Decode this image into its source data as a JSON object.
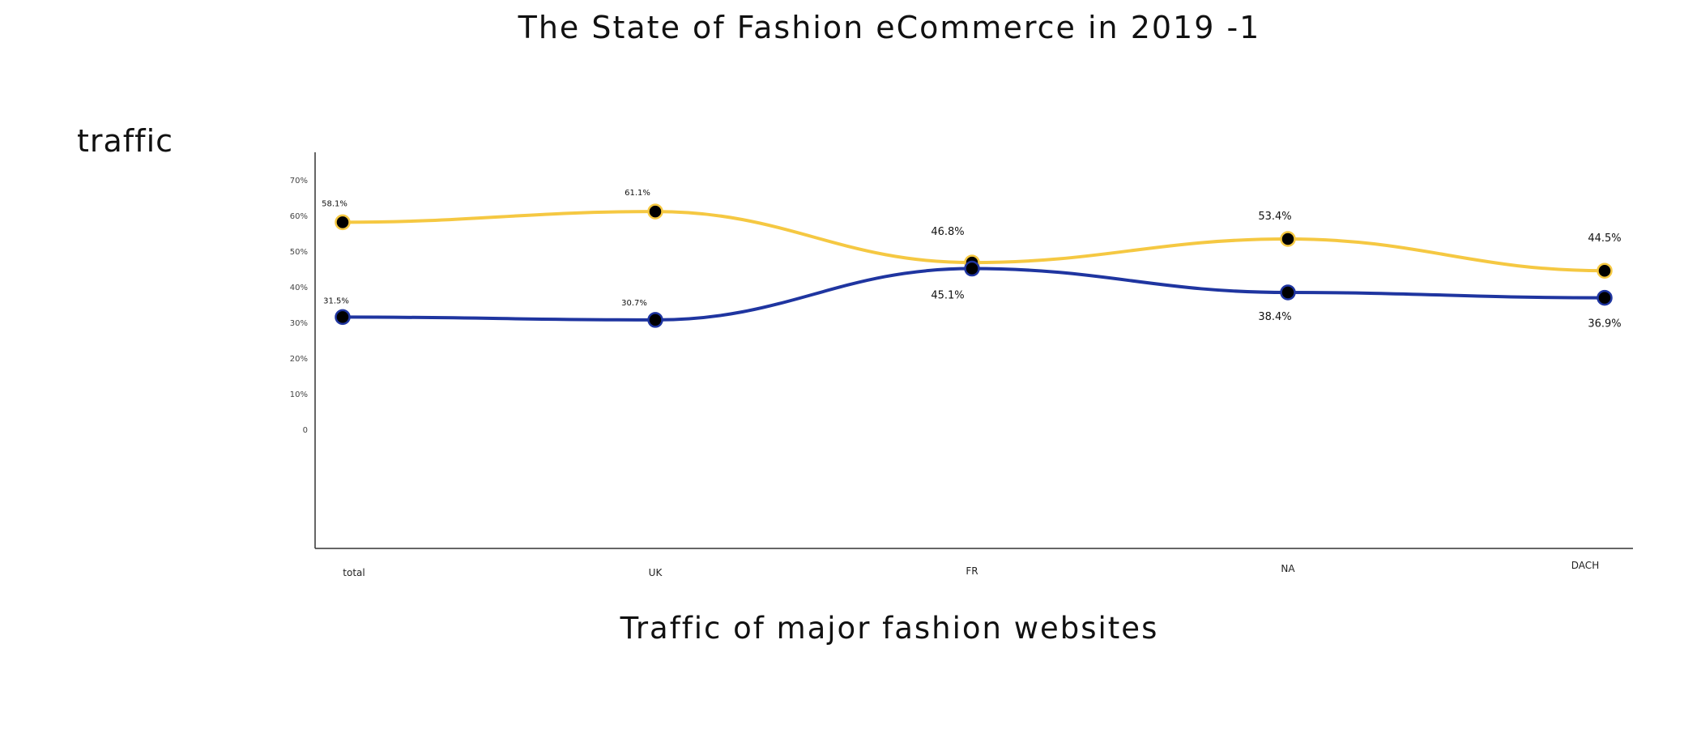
{
  "chart_data": {
    "type": "line",
    "title": "The State of Fashion eCommerce in 2019 -1",
    "xlabel": "Traffic of major fashion websites",
    "ylabel": "traffic",
    "categories": [
      "total",
      "UK",
      "FR",
      "NA",
      "DACH"
    ],
    "yticks": [
      "70%",
      "60%",
      "50%",
      "40%",
      "30%",
      "20%",
      "10%",
      "0"
    ],
    "ylim": [
      0,
      70
    ],
    "grid": false,
    "series": [
      {
        "color": "#f5c842",
        "values": [
          58.1,
          61.1,
          46.8,
          53.4,
          44.5
        ],
        "labels": [
          "58.1%",
          "61.1%",
          "46.8%",
          "53.4%",
          "44.5%"
        ]
      },
      {
        "color": "#1f35a0",
        "values": [
          31.5,
          30.7,
          45.1,
          38.4,
          36.9
        ],
        "labels": [
          "31.5%",
          "30.7%",
          "45.1%",
          "38.4%",
          "36.9%"
        ]
      }
    ],
    "marker_fill": "#000000"
  }
}
